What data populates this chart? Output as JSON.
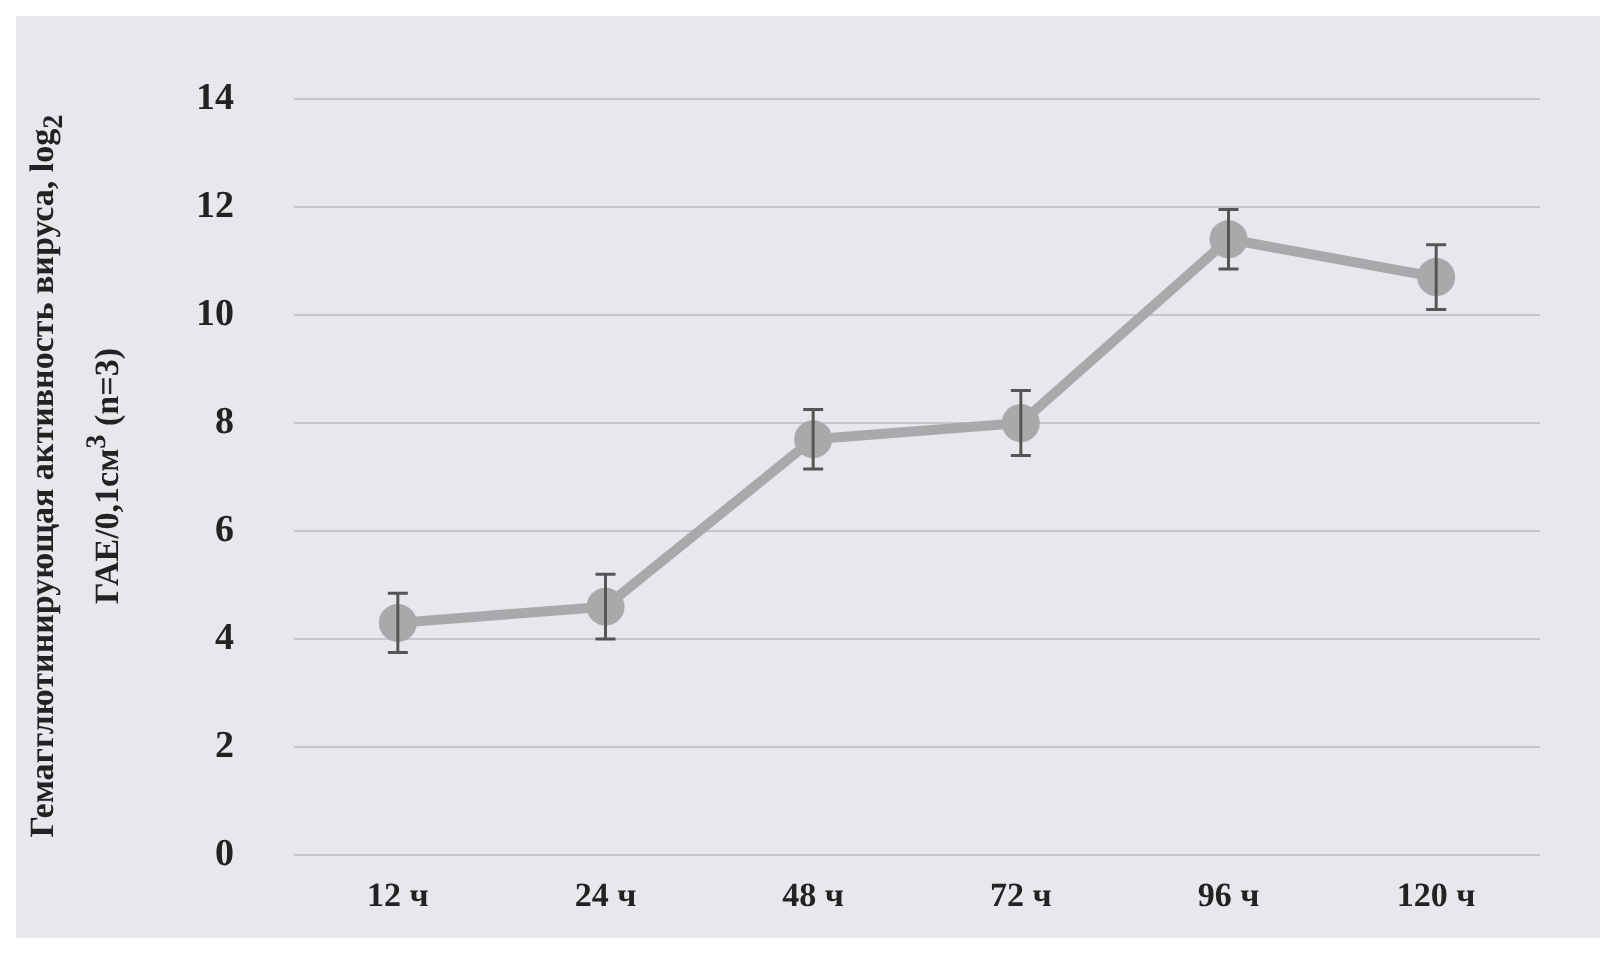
{
  "chart_data": {
    "type": "line",
    "ylabel": "Гемагглютинирующая активность вируса, log$_{2}$ ГАЕ/0,1см$^{3}$ (n=3)",
    "categories": [
      "12 ч",
      "24 ч",
      "48 ч",
      "72 ч",
      "96 ч",
      "120 ч"
    ],
    "series": [
      {
        "color": "#a9a9ab",
        "values": [
          4.3,
          4.6,
          7.7,
          8.0,
          11.4,
          10.7
        ],
        "errors": [
          0.55,
          0.6,
          0.55,
          0.6,
          0.55,
          0.6
        ]
      }
    ],
    "ylim": [
      0,
      14
    ],
    "yticks": [
      0,
      2,
      4,
      6,
      8,
      10,
      12,
      14
    ],
    "grid": "y",
    "marker": "circle",
    "line_style": "solid"
  }
}
